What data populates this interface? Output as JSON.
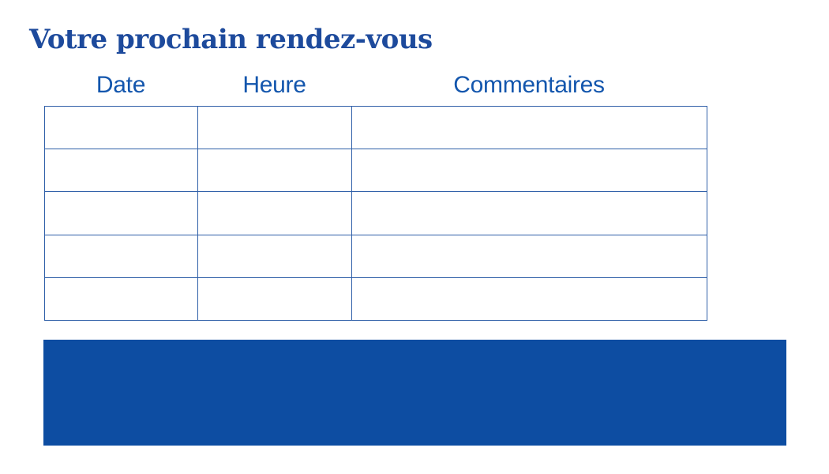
{
  "colors": {
    "background": "#ffffff",
    "title": "#1d4a9c",
    "header": "#1356ad",
    "border": "#2f5fa8",
    "banner": "#0d4da2"
  },
  "title": "Votre prochain rendez-vous",
  "table": {
    "columns": [
      "Date",
      "Heure",
      "Commentaires"
    ],
    "rows": [
      [
        "",
        "",
        ""
      ],
      [
        "",
        "",
        ""
      ],
      [
        "",
        "",
        ""
      ],
      [
        "",
        "",
        ""
      ],
      [
        "",
        "",
        ""
      ]
    ]
  }
}
